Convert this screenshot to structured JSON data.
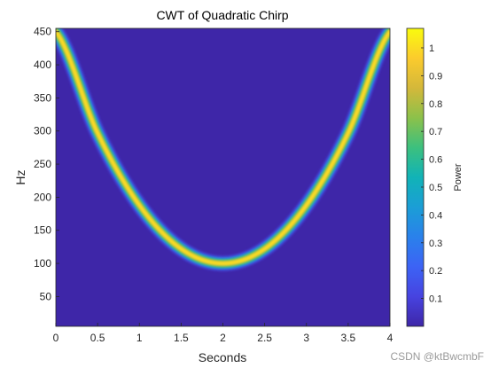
{
  "chart_data": {
    "type": "heatmap",
    "title": "CWT of Quadratic Chirp",
    "xlabel": "Seconds",
    "ylabel": "Hz",
    "xlim": [
      0,
      4
    ],
    "ylim": [
      5,
      455
    ],
    "xticks": [
      "0",
      "0.5",
      "1",
      "1.5",
      "2",
      "2.5",
      "3",
      "3.5",
      "4"
    ],
    "xtick_values": [
      0,
      0.5,
      1,
      1.5,
      2,
      2.5,
      3,
      3.5,
      4
    ],
    "yticks": [
      "50",
      "100",
      "150",
      "200",
      "250",
      "300",
      "350",
      "400",
      "450"
    ],
    "ytick_values": [
      50,
      100,
      150,
      200,
      250,
      300,
      350,
      400,
      450
    ],
    "ridge": {
      "description_formula": "f(t) = 100 + 87.5*(t-2)^2",
      "t": [
        0,
        0.5,
        1,
        1.5,
        2,
        2.5,
        3,
        3.5,
        4
      ],
      "f": [
        450,
        297,
        188,
        122,
        100,
        122,
        188,
        297,
        450
      ]
    },
    "colorbar": {
      "label": "Power",
      "range": [
        0,
        1.07
      ],
      "ticks": [
        "0.1",
        "0.2",
        "0.3",
        "0.4",
        "0.5",
        "0.6",
        "0.7",
        "0.8",
        "0.9",
        "1"
      ],
      "tick_values": [
        0.1,
        0.2,
        0.3,
        0.4,
        0.5,
        0.6,
        0.7,
        0.8,
        0.9,
        1.0
      ],
      "colormap": "parula"
    },
    "background_color": "#3E26A8",
    "grid": false
  },
  "watermark": "CSDN @ktBwcmbF"
}
